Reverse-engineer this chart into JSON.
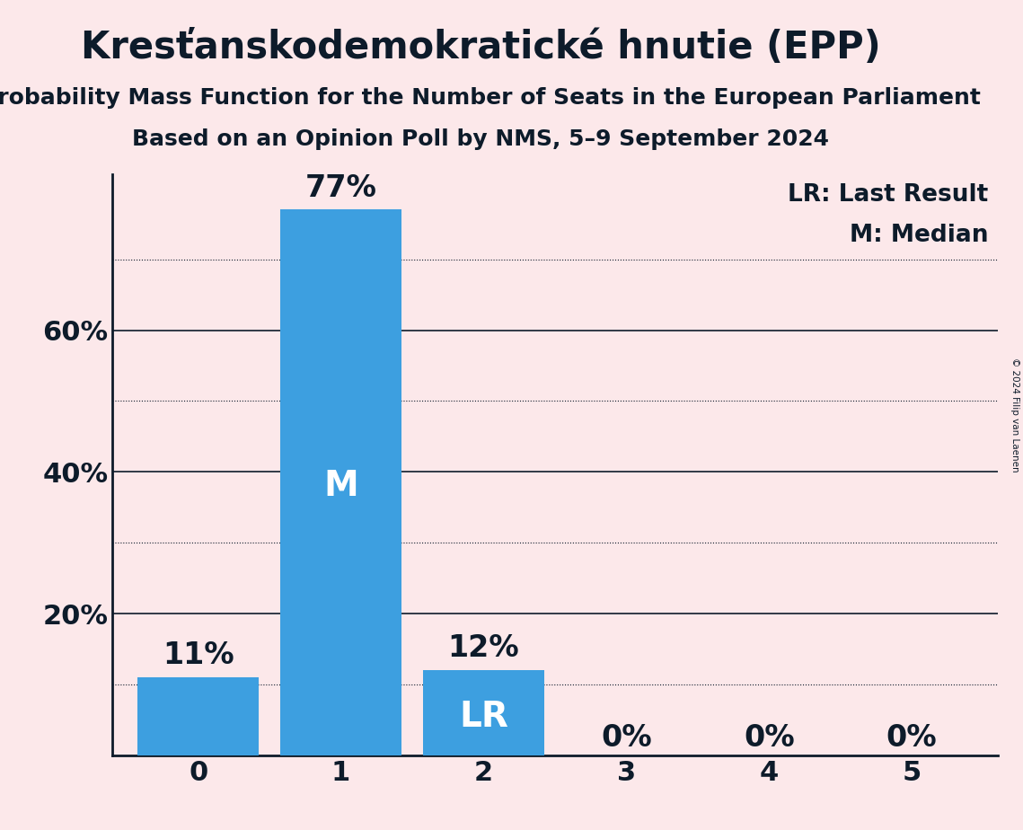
{
  "title": "Kresťanskodemokratické hnutie (EPP)",
  "subtitle1": "Probability Mass Function for the Number of Seats in the European Parliament",
  "subtitle2": "Based on an Opinion Poll by NMS, 5–9 September 2024",
  "copyright": "© 2024 Filip van Laenen",
  "categories": [
    0,
    1,
    2,
    3,
    4,
    5
  ],
  "values": [
    0.11,
    0.77,
    0.12,
    0.0,
    0.0,
    0.0
  ],
  "bar_color": "#3d9fe0",
  "background_color": "#fce8ea",
  "text_color": "#0d1b2a",
  "median_bar": 1,
  "last_result_bar": 2,
  "legend_lr": "LR: Last Result",
  "legend_m": "M: Median",
  "ylim": [
    0,
    0.82
  ],
  "solid_lines": [
    0.2,
    0.4,
    0.6
  ],
  "dotted_lines": [
    0.1,
    0.3,
    0.5,
    0.7
  ],
  "yticks": [
    0.2,
    0.4,
    0.6
  ],
  "ytick_labels": [
    "20%",
    "40%",
    "60%"
  ],
  "title_fontsize": 30,
  "subtitle_fontsize": 18,
  "bar_label_fontsize": 24,
  "axis_label_fontsize": 22,
  "legend_fontsize": 19,
  "bar_inner_label_fontsize": 28
}
